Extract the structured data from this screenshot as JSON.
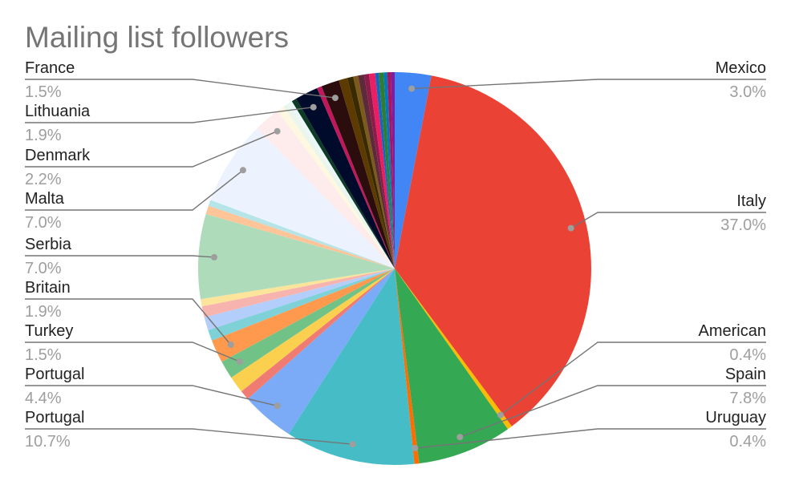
{
  "chart_data": {
    "type": "pie",
    "title": "Mailing list followers",
    "start_angle_deg": 0,
    "slices": [
      {
        "label": "Mexico",
        "value": 3.0,
        "pct_text": "3.0%",
        "color": "#4285f4"
      },
      {
        "label": "Italy",
        "value": 37.0,
        "pct_text": "37.0%",
        "color": "#ea4335"
      },
      {
        "label": "American",
        "value": 0.4,
        "pct_text": "0.4%",
        "color": "#fbbc04"
      },
      {
        "label": "Spain",
        "value": 7.8,
        "pct_text": "7.8%",
        "color": "#34a853"
      },
      {
        "label": "Uruguay",
        "value": 0.4,
        "pct_text": "0.4%",
        "color": "#ff6d01"
      },
      {
        "label": "Portugal",
        "value": 10.7,
        "pct_text": "10.7%",
        "color": "#46bdc6"
      },
      {
        "label": "Portugal",
        "value": 4.4,
        "pct_text": "4.4%",
        "color": "#7baaf7"
      },
      {
        "label": "",
        "value": 0.8,
        "pct_text": "",
        "color": "#f07b72"
      },
      {
        "label": "",
        "value": 1.4,
        "pct_text": "",
        "color": "#fcd04f"
      },
      {
        "label": "Turkey",
        "value": 1.5,
        "pct_text": "1.5%",
        "color": "#71c287"
      },
      {
        "label": "Britain",
        "value": 1.9,
        "pct_text": "1.9%",
        "color": "#ff994d"
      },
      {
        "label": "",
        "value": 0.9,
        "pct_text": "",
        "color": "#7ed1d7"
      },
      {
        "label": "",
        "value": 1.1,
        "pct_text": "",
        "color": "#b3cefb"
      },
      {
        "label": "",
        "value": 0.9,
        "pct_text": "",
        "color": "#f7b4ae"
      },
      {
        "label": "",
        "value": 0.6,
        "pct_text": "",
        "color": "#fde49b"
      },
      {
        "label": "Serbia",
        "value": 7.0,
        "pct_text": "7.0%",
        "color": "#aedcba"
      },
      {
        "label": "",
        "value": 0.7,
        "pct_text": "",
        "color": "#ffc599"
      },
      {
        "label": "",
        "value": 0.5,
        "pct_text": "",
        "color": "#b5e5e8"
      },
      {
        "label": "Malta",
        "value": 7.0,
        "pct_text": "7.0%",
        "color": "#ecf3fe"
      },
      {
        "label": "Denmark",
        "value": 2.2,
        "pct_text": "2.2%",
        "color": "#fdeceb"
      },
      {
        "label": "",
        "value": 0.6,
        "pct_text": "",
        "color": "#fff8e1"
      },
      {
        "label": "",
        "value": 0.5,
        "pct_text": "",
        "color": "#eaf6ed"
      },
      {
        "label": "",
        "value": 0.3,
        "pct_text": "",
        "color": "#ebf8f9"
      },
      {
        "label": "",
        "value": 0.4,
        "pct_text": "",
        "color": "#0d3b26"
      },
      {
        "label": "Lithuania",
        "value": 1.9,
        "pct_text": "1.9%",
        "color": "#000a2a"
      },
      {
        "label": "",
        "value": 0.4,
        "pct_text": "",
        "color": "#c2185b"
      },
      {
        "label": "France",
        "value": 1.5,
        "pct_text": "1.5%",
        "color": "#2b0d0d"
      },
      {
        "label": "",
        "value": 0.7,
        "pct_text": "",
        "color": "#5d3a00"
      },
      {
        "label": "",
        "value": 0.5,
        "pct_text": "",
        "color": "#3a2a00"
      },
      {
        "label": "",
        "value": 0.4,
        "pct_text": "",
        "color": "#7b5a1c"
      },
      {
        "label": "",
        "value": 0.5,
        "pct_text": "",
        "color": "#5c2a3a"
      },
      {
        "label": "",
        "value": 0.4,
        "pct_text": "",
        "color": "#8e1c4a"
      },
      {
        "label": "",
        "value": 0.5,
        "pct_text": "",
        "color": "#e91e63"
      },
      {
        "label": "",
        "value": 0.3,
        "pct_text": "",
        "color": "#1565c0"
      },
      {
        "label": "",
        "value": 0.4,
        "pct_text": "",
        "color": "#2e7d32"
      },
      {
        "label": "",
        "value": 0.3,
        "pct_text": "",
        "color": "#0277bd"
      },
      {
        "label": "",
        "value": 0.3,
        "pct_text": "",
        "color": "#ad1457"
      },
      {
        "label": "",
        "value": 0.3,
        "pct_text": "",
        "color": "#7b1fa2"
      }
    ]
  }
}
